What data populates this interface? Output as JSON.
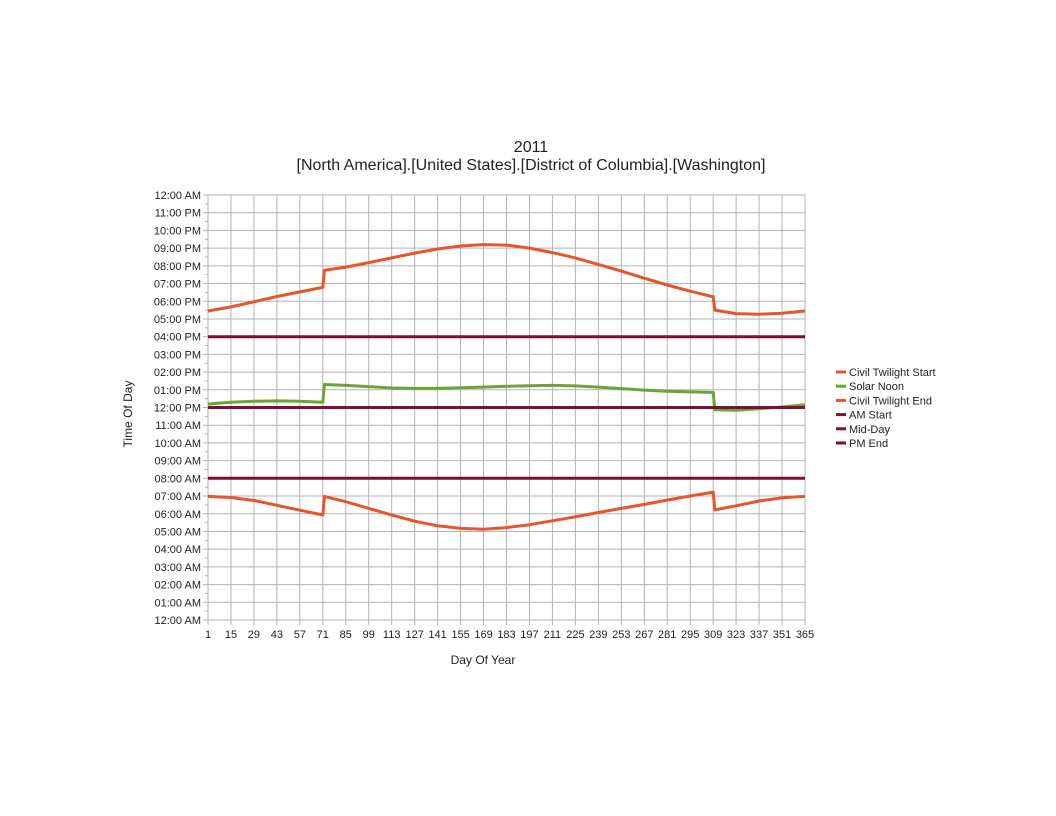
{
  "chart_data": {
    "type": "line",
    "title": "2011",
    "subtitle": "[North America].[United States].[District of Columbia].[Washington]",
    "xlabel": "Day Of Year",
    "ylabel": "Time Of Day",
    "xlim": [
      1,
      365
    ],
    "ylim": [
      0,
      24
    ],
    "y_unit": "hours",
    "grid": true,
    "legend_position": "right",
    "x_ticks": [
      1,
      15,
      29,
      43,
      57,
      71,
      85,
      99,
      113,
      127,
      141,
      155,
      169,
      183,
      197,
      211,
      225,
      239,
      253,
      267,
      281,
      295,
      309,
      323,
      337,
      351,
      365
    ],
    "y_ticks": [
      0,
      1,
      2,
      3,
      4,
      5,
      6,
      7,
      8,
      9,
      10,
      11,
      12,
      13,
      14,
      15,
      16,
      17,
      18,
      19,
      20,
      21,
      22,
      23,
      24
    ],
    "y_tick_labels": [
      "12:00 AM",
      "01:00 AM",
      "02:00 AM",
      "03:00 AM",
      "04:00 AM",
      "05:00 AM",
      "06:00 AM",
      "07:00 AM",
      "08:00 AM",
      "09:00 AM",
      "10:00 AM",
      "11:00 AM",
      "12:00 PM",
      "01:00 PM",
      "02:00 PM",
      "03:00 PM",
      "04:00 PM",
      "05:00 PM",
      "06:00 PM",
      "07:00 PM",
      "08:00 PM",
      "09:00 PM",
      "10:00 PM",
      "11:00 PM",
      "12:00 AM"
    ],
    "series": [
      {
        "name": "Civil Twilight Start",
        "color": "#e8552a",
        "x": [
          1,
          15,
          29,
          43,
          57,
          71,
          72,
          85,
          99,
          113,
          127,
          141,
          155,
          169,
          183,
          197,
          211,
          225,
          239,
          253,
          267,
          281,
          295,
          309,
          310,
          323,
          337,
          351,
          365
        ],
        "values": [
          6.98,
          6.92,
          6.75,
          6.48,
          6.2,
          5.93,
          6.98,
          6.68,
          6.3,
          5.93,
          5.58,
          5.32,
          5.17,
          5.13,
          5.22,
          5.38,
          5.6,
          5.83,
          6.07,
          6.3,
          6.53,
          6.77,
          7.0,
          7.22,
          6.22,
          6.45,
          6.72,
          6.9,
          6.98
        ]
      },
      {
        "name": "Solar Noon",
        "color": "#6aa536",
        "x": [
          1,
          15,
          29,
          43,
          57,
          71,
          72,
          85,
          99,
          113,
          127,
          141,
          155,
          169,
          183,
          197,
          211,
          225,
          239,
          253,
          267,
          281,
          295,
          309,
          310,
          323,
          337,
          351,
          365
        ],
        "values": [
          12.2,
          12.3,
          12.35,
          12.37,
          12.35,
          12.3,
          13.3,
          13.25,
          13.18,
          13.1,
          13.08,
          13.08,
          13.12,
          13.15,
          13.2,
          13.23,
          13.25,
          13.22,
          13.15,
          13.07,
          12.98,
          12.92,
          12.88,
          12.85,
          11.87,
          11.85,
          11.93,
          12.03,
          12.15
        ]
      },
      {
        "name": "Civil Twilight End",
        "color": "#e8552a",
        "x": [
          1,
          15,
          29,
          43,
          57,
          71,
          72,
          85,
          99,
          113,
          127,
          141,
          155,
          169,
          183,
          197,
          211,
          225,
          239,
          253,
          267,
          281,
          295,
          309,
          310,
          323,
          337,
          351,
          365
        ],
        "values": [
          17.45,
          17.68,
          17.97,
          18.27,
          18.53,
          18.78,
          19.75,
          19.93,
          20.18,
          20.45,
          20.72,
          20.95,
          21.12,
          21.2,
          21.17,
          21.0,
          20.75,
          20.45,
          20.08,
          19.7,
          19.3,
          18.92,
          18.57,
          18.25,
          17.5,
          17.3,
          17.27,
          17.32,
          17.45
        ]
      },
      {
        "name": "AM Start",
        "color": "#7a0f3a",
        "x": [
          1,
          365
        ],
        "values": [
          8,
          8
        ]
      },
      {
        "name": "Mid-Day",
        "color": "#7a0f3a",
        "x": [
          1,
          365
        ],
        "values": [
          12,
          12
        ]
      },
      {
        "name": "PM End",
        "color": "#7a0f3a",
        "x": [
          1,
          365
        ],
        "values": [
          16,
          16
        ]
      }
    ]
  }
}
